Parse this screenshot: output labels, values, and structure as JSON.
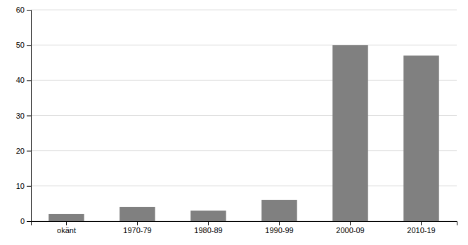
{
  "chart_data": {
    "type": "bar",
    "categories": [
      "okänt",
      "1970-79",
      "1980-89",
      "1990-99",
      "2000-09",
      "2010-19"
    ],
    "values": [
      2,
      4,
      3,
      6,
      50,
      47
    ],
    "color": "#808080",
    "ylim": [
      0,
      60
    ],
    "yticks": [
      0,
      10,
      20,
      30,
      40,
      50,
      60
    ],
    "grid": true
  }
}
